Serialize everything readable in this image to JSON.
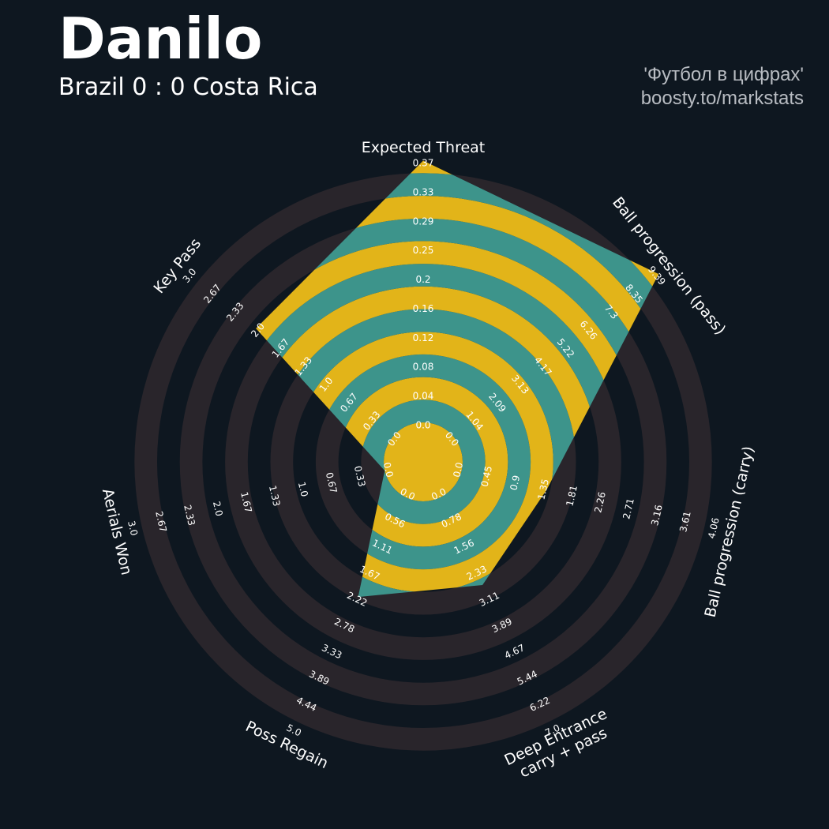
{
  "header": {
    "title": "Danilo",
    "subtitle": "Brazil 0 : 0 Costa Rica",
    "credit_line1": "'Футбол в цифрах'",
    "credit_line2": "boosty.to/markstats"
  },
  "colors": {
    "background": "#0e1720",
    "ring_dark": "#29252b",
    "ring_gold": "#e2b419",
    "fill_teal": "#3d948b",
    "text": "#ffffff"
  },
  "chart_data": {
    "type": "radar",
    "title": "Danilo",
    "subtitle": "Brazil 0 : 0 Costa Rica",
    "axes": [
      {
        "label": [
          "Expected Threat"
        ],
        "min": 0.0,
        "max": 0.37,
        "value": 0.37,
        "ticks": [
          "0.0",
          "0.04",
          "0.08",
          "0.12",
          "0.16",
          "0.2",
          "0.25",
          "0.29",
          "0.33",
          "0.37"
        ]
      },
      {
        "label": [
          "Ball progression (pass)"
        ],
        "min": 0.0,
        "max": 9.39,
        "value": 9.39,
        "ticks": [
          "0.0",
          "1.04",
          "2.09",
          "3.13",
          "4.17",
          "5.22",
          "6.26",
          "7.3",
          "8.35",
          "9.39"
        ]
      },
      {
        "label": [
          "Ball progression (carry)"
        ],
        "min": 0.0,
        "max": 4.06,
        "value": 1.35,
        "ticks": [
          "0.0",
          "0.45",
          "0.9",
          "1.35",
          "1.81",
          "2.26",
          "2.71",
          "3.16",
          "3.61",
          "4.06"
        ]
      },
      {
        "label": [
          "Deep Entrance",
          "carry + pass"
        ],
        "min": 0.0,
        "max": 7.0,
        "value": 2.6,
        "ticks": [
          "0.0",
          "0.78",
          "1.56",
          "2.33",
          "3.11",
          "3.89",
          "4.67",
          "5.44",
          "6.22",
          "7.0"
        ]
      },
      {
        "label": [
          "Poss Regain"
        ],
        "min": 0.0,
        "max": 5.0,
        "value": 2.11,
        "ticks": [
          "0.0",
          "0.56",
          "1.11",
          "1.67",
          "2.22",
          "2.78",
          "3.33",
          "3.89",
          "4.44",
          "5.0"
        ]
      },
      {
        "label": [
          "Aerials Won"
        ],
        "min": 0.0,
        "max": 3.0,
        "value": 0.0,
        "ticks": [
          "0.0",
          "0.33",
          "0.67",
          "1.0",
          "1.33",
          "1.67",
          "2.0",
          "2.33",
          "2.67",
          "3.0"
        ]
      },
      {
        "label": [
          "Key Pass"
        ],
        "min": 0.0,
        "max": 3.0,
        "value": 2.0,
        "ticks": [
          "0.0",
          "0.33",
          "0.67",
          "1.0",
          "1.33",
          "1.67",
          "2.0",
          "2.33",
          "2.67",
          "3.0"
        ]
      }
    ],
    "grid": true,
    "legend": "none"
  }
}
